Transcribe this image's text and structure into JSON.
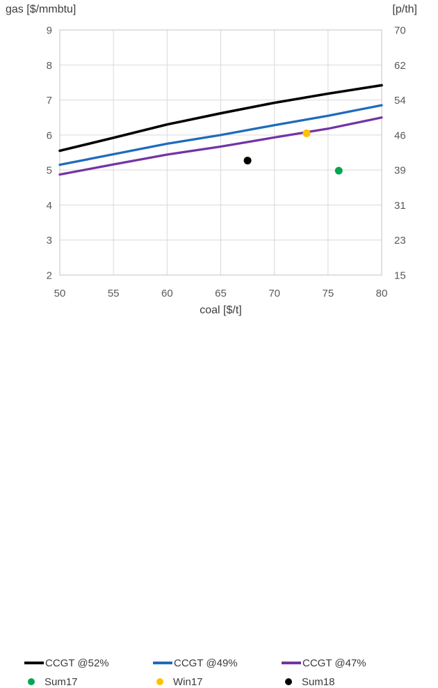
{
  "colors": {
    "background": "#FFFFFF",
    "gridline": "#D9D9D9",
    "plot_border": "#C3C3C3",
    "tick_text": "#595959",
    "axis_title_text": "#3D3D3D"
  },
  "chart_data": {
    "type": "line",
    "x": [
      50,
      55,
      60,
      65,
      70,
      75,
      80
    ],
    "series": [
      {
        "name": "CCGT @52%",
        "color": "#000000",
        "width": 3.6,
        "values": [
          5.55,
          5.92,
          6.3,
          6.62,
          6.92,
          7.18,
          7.42
        ]
      },
      {
        "name": "CCGT @49%",
        "color": "#1F6BBC",
        "width": 3.3,
        "values": [
          5.15,
          5.45,
          5.75,
          6.0,
          6.28,
          6.55,
          6.85
        ]
      },
      {
        "name": "CCGT @47%",
        "color": "#7434A4",
        "width": 3.3,
        "values": [
          4.87,
          5.16,
          5.44,
          5.67,
          5.93,
          6.18,
          6.5
        ]
      }
    ],
    "points": [
      {
        "name": "Sum17",
        "color": "#00A651",
        "x": 76,
        "y": 4.98
      },
      {
        "name": "Win17",
        "color": "#FFC000",
        "x": 73,
        "y": 6.05
      },
      {
        "name": "Sum18",
        "color": "#000000",
        "x": 67.5,
        "y": 5.27
      }
    ],
    "left_axis": {
      "title": "gas [$/mmbtu]",
      "range": [
        2,
        9
      ],
      "ticks": [
        2,
        3,
        4,
        5,
        6,
        7,
        8,
        9
      ]
    },
    "right_axis": {
      "title": "[p/th]",
      "ticks": [
        15,
        23,
        31,
        39,
        46,
        54,
        62,
        70
      ]
    },
    "x_axis": {
      "title": "coal [$/t]",
      "range": [
        50,
        80
      ],
      "ticks": [
        50,
        55,
        60,
        65,
        70,
        75,
        80
      ]
    },
    "grid": true,
    "legend_position": "bottom"
  }
}
